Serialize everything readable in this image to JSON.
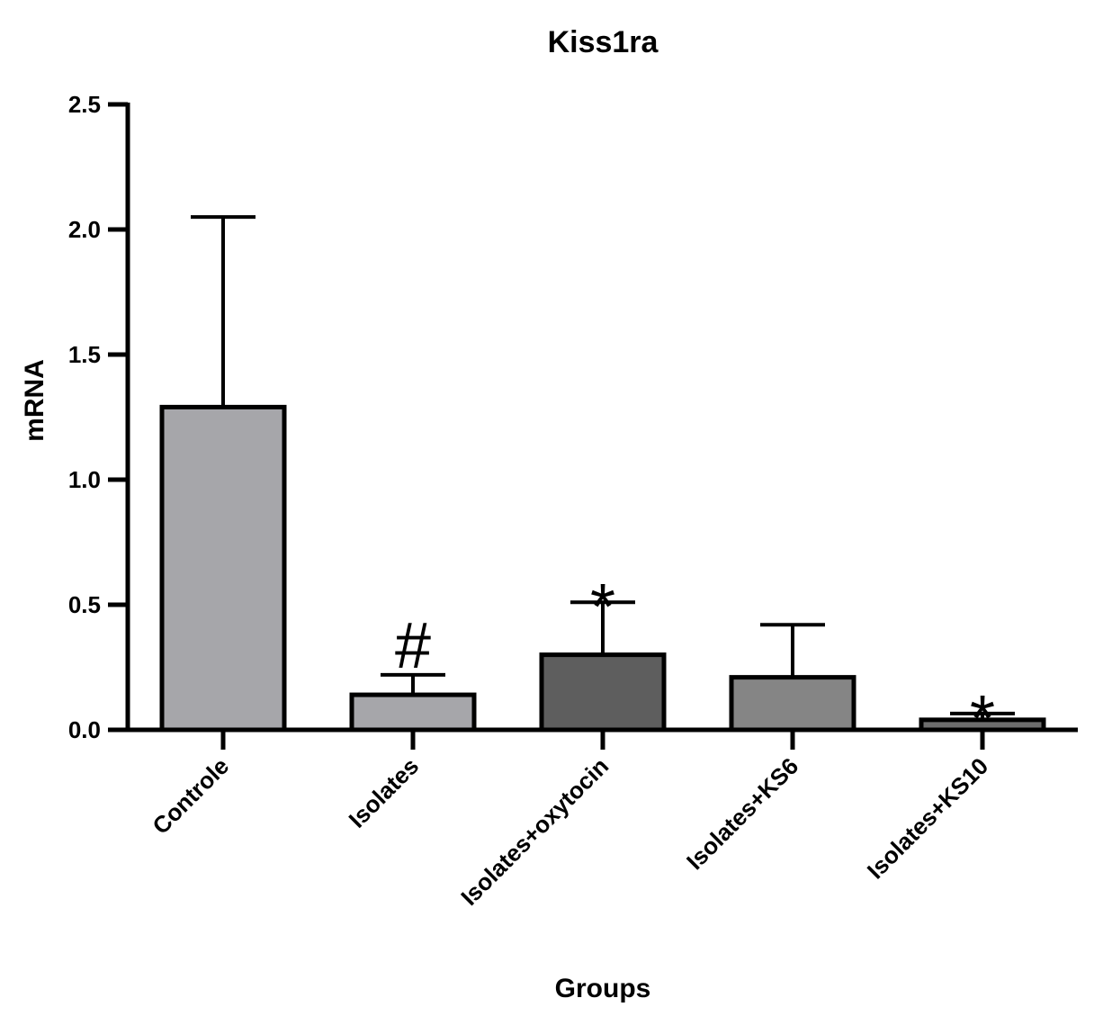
{
  "chart_data": {
    "type": "bar",
    "title": "Kiss1ra",
    "xlabel": "Groups",
    "ylabel": "mRNA",
    "ylim": [
      0,
      2.5
    ],
    "yticks": [
      "0.0",
      "0.5",
      "1.0",
      "1.5",
      "2.0",
      "2.5"
    ],
    "ytick_values": [
      0,
      0.5,
      1.0,
      1.5,
      2.0,
      2.5
    ],
    "categories": [
      "Controle",
      "Isolates",
      "Isolates+oxytocin",
      "Isolates+KS6",
      "Isolates+KS10"
    ],
    "values": [
      1.29,
      0.14,
      0.3,
      0.21,
      0.04
    ],
    "error_upper": [
      2.05,
      0.22,
      0.51,
      0.42,
      0.065
    ],
    "annotations": [
      "",
      "#",
      "*",
      "",
      "*"
    ],
    "bar_colors": [
      "#a6a6aa",
      "#a6a6aa",
      "#5e5e5e",
      "#858585",
      "#6e6e6e"
    ],
    "grid": false,
    "legend": "none"
  }
}
